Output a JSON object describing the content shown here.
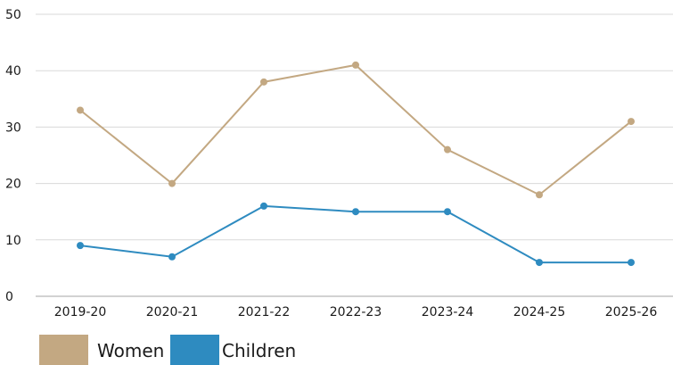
{
  "chart_data": {
    "type": "line",
    "categories": [
      "2019-20",
      "2020-21",
      "2021-22",
      "2022-23",
      "2023-24",
      "2024-25",
      "2025-26"
    ],
    "series": [
      {
        "name": "Women",
        "color": "#c3a882",
        "values": [
          33,
          20,
          38,
          41,
          26,
          18,
          31
        ]
      },
      {
        "name": "Children",
        "color": "#2e8bc0",
        "values": [
          9,
          7,
          16,
          15,
          15,
          6,
          6
        ]
      }
    ],
    "yticks": [
      0,
      10,
      20,
      30,
      40,
      50
    ],
    "ylim": [
      0,
      50
    ],
    "grid": true,
    "legend": "bottom-left",
    "title": "",
    "xlabel": "",
    "ylabel": ""
  }
}
